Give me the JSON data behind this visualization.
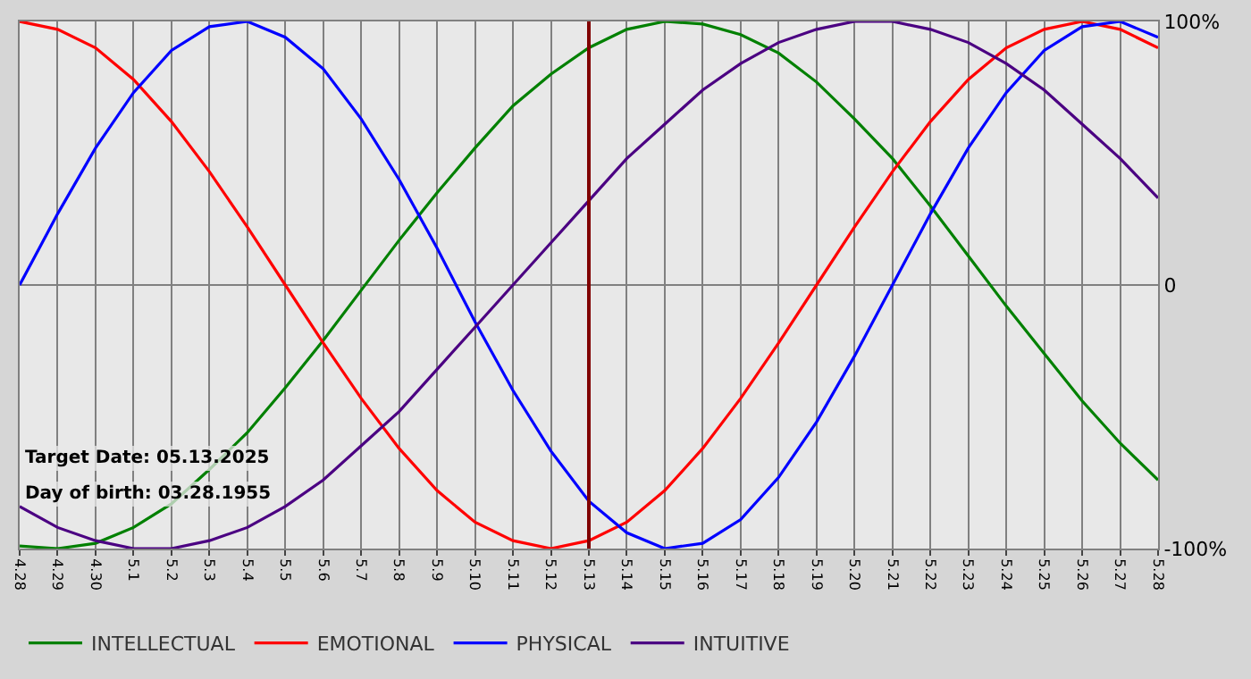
{
  "chart_data": {
    "type": "line",
    "categories": [
      "4.28",
      "4.29",
      "4.30",
      "5.1",
      "5.2",
      "5.3",
      "5.4",
      "5.5",
      "5.6",
      "5.7",
      "5.8",
      "5.9",
      "5.10",
      "5.11",
      "5.12",
      "5.13",
      "5.14",
      "5.15",
      "5.16",
      "5.17",
      "5.18",
      "5.19",
      "5.20",
      "5.21",
      "5.22",
      "5.23",
      "5.24",
      "5.25",
      "5.26",
      "5.27",
      "5.28"
    ],
    "series": [
      {
        "name": "INTELLECTUAL",
        "color": "#008000",
        "values": [
          -99,
          -100,
          -98,
          -92,
          -83,
          -70,
          -56,
          -39,
          -21,
          -2,
          17,
          35,
          52,
          68,
          80,
          90,
          97,
          100,
          99,
          95,
          88,
          77,
          63,
          48,
          30,
          11,
          -8,
          -26,
          -44,
          -60,
          -74
        ]
      },
      {
        "name": "EMOTIONAL",
        "color": "#ff0000",
        "values": [
          100,
          97,
          90,
          78,
          62,
          43,
          22,
          0,
          -22,
          -43,
          -62,
          -78,
          -90,
          -97,
          -100,
          -97,
          -90,
          -78,
          -62,
          -43,
          -22,
          0,
          22,
          43,
          62,
          78,
          90,
          97,
          100,
          97,
          90
        ]
      },
      {
        "name": "PHYSICAL",
        "color": "#0000ff",
        "values": [
          0,
          27,
          52,
          73,
          89,
          98,
          100,
          94,
          82,
          63,
          40,
          14,
          -14,
          -40,
          -63,
          -82,
          -94,
          -100,
          -98,
          -89,
          -73,
          -52,
          -27,
          0,
          27,
          52,
          73,
          89,
          98,
          100,
          94
        ]
      },
      {
        "name": "INTUITIVE",
        "color": "#4b0082",
        "values": [
          -84,
          -92,
          -97,
          -100,
          -100,
          -97,
          -92,
          -84,
          -74,
          -61,
          -48,
          -32,
          -16,
          0,
          16,
          32,
          48,
          61,
          74,
          84,
          92,
          97,
          100,
          100,
          97,
          92,
          84,
          74,
          61,
          48,
          33
        ]
      }
    ],
    "ylim": [
      -100,
      100
    ],
    "yticks": [
      {
        "value": 100,
        "label": "100%"
      },
      0,
      {
        "value": -100,
        "label": "-100%"
      }
    ],
    "ref_lines": [
      {
        "axis": "x",
        "value": "5.13",
        "color": "#800000"
      }
    ],
    "annotations": [
      "Target Date: 05.13.2025",
      "Day of birth: 03.28.1955"
    ],
    "grid": true,
    "legend": "bottom left",
    "marker": "none",
    "line_style": "solid"
  }
}
